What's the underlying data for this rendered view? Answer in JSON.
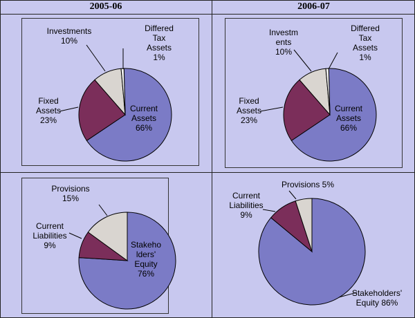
{
  "headers": [
    "2005-06",
    "2006-07"
  ],
  "colors": {
    "current": "#7b7bc6",
    "fixed": "#7b2e5a",
    "investments": "#d9d5d0",
    "tax": "#f0f0f0",
    "outline": "#000000"
  },
  "chart_data": [
    {
      "type": "pie",
      "title": "",
      "period": "2005-06",
      "slices": [
        {
          "label": "Current Assets",
          "value": 66
        },
        {
          "label": "Fixed Assets",
          "value": 23
        },
        {
          "label": "Investments",
          "value": 10
        },
        {
          "label": "Differed Tax Assets",
          "value": 1
        }
      ]
    },
    {
      "type": "pie",
      "title": "",
      "period": "2006-07",
      "slices": [
        {
          "label": "Current Assets",
          "value": 66
        },
        {
          "label": "Fixed Assets",
          "value": 23
        },
        {
          "label": "Investments",
          "value": 10
        },
        {
          "label": "Differed Tax Assets",
          "value": 1
        }
      ]
    },
    {
      "type": "pie",
      "title": "",
      "period": "2005-06",
      "slices": [
        {
          "label": "Stakeholders' Equity",
          "value": 76
        },
        {
          "label": "Current Liabilities",
          "value": 9
        },
        {
          "label": "Provisions",
          "value": 15
        }
      ]
    },
    {
      "type": "pie",
      "title": "",
      "period": "2006-07",
      "slices": [
        {
          "label": "Stakeholders' Equity",
          "value": 86
        },
        {
          "label": "Current Liabilities",
          "value": 9
        },
        {
          "label": "Provisions",
          "value": 5
        }
      ]
    }
  ],
  "labels": {
    "c1": {
      "investments": "Investments\n10%",
      "tax": "Differed\nTax\nAssets\n1%",
      "fixed": "Fixed\nAssets\n23%",
      "current": "Current\nAssets\n66%"
    },
    "c2": {
      "investments": "Investm\nents\n10%",
      "tax": "Differed\nTax\nAssets\n1%",
      "fixed": "Fixed\nAssets\n23%",
      "current": "Current\nAssets\n66%"
    },
    "c3": {
      "provisions": "Provisions\n15%",
      "liabilities": "Current\nLiabilities\n9%",
      "equity": "Stakeho\nlders'\nEquity\n76%"
    },
    "c4": {
      "provisions": "Provisions 5%",
      "liabilities": "Current\nLiabilities\n9%",
      "equity": "Stakeholders'\nEquity 86%"
    }
  }
}
